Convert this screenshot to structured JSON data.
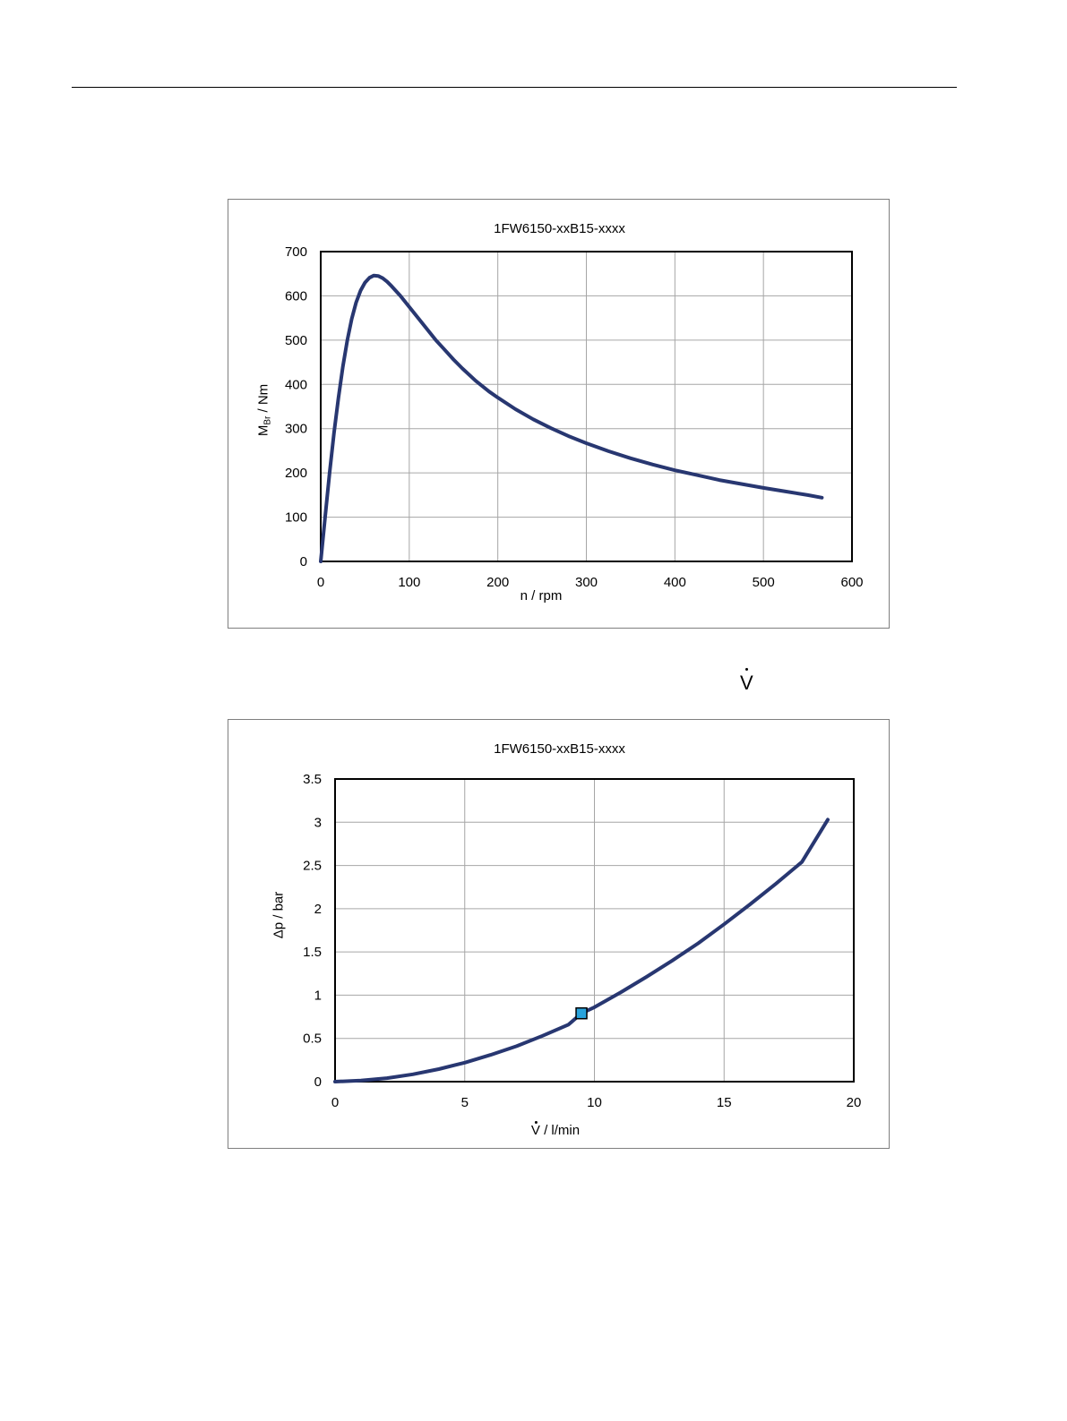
{
  "page": {
    "v_dot_symbol": "V"
  },
  "chart_data": [
    {
      "type": "line",
      "title": "1FW6150-xxB15-xxxx",
      "xlabel": "n / rpm",
      "ylabel_main": "M",
      "ylabel_sub": "Br",
      "ylabel_rest": " / Nm",
      "xlim": [
        0,
        600
      ],
      "ylim": [
        0,
        700
      ],
      "xticks": [
        0,
        100,
        200,
        300,
        400,
        500,
        600
      ],
      "yticks": [
        0,
        100,
        200,
        300,
        400,
        500,
        600,
        700
      ],
      "grid": true,
      "line_color": "#283771",
      "series": [
        {
          "x": [
            0,
            5,
            10,
            15,
            20,
            25,
            30,
            35,
            40,
            45,
            50,
            55,
            60,
            65,
            70,
            75,
            80,
            90,
            100,
            110,
            120,
            130,
            140,
            150,
            160,
            175,
            190,
            200,
            220,
            240,
            260,
            280,
            300,
            325,
            350,
            375,
            400,
            425,
            450,
            475,
            500,
            525,
            550,
            566
          ],
          "y": [
            0,
            100,
            200,
            290,
            370,
            440,
            500,
            548,
            585,
            612,
            630,
            641,
            646,
            645,
            640,
            632,
            622,
            600,
            575,
            550,
            525,
            500,
            478,
            456,
            436,
            408,
            384,
            370,
            344,
            321,
            301,
            283,
            267,
            249,
            233,
            219,
            206,
            195,
            184,
            175,
            166,
            158,
            150,
            144
          ]
        }
      ]
    },
    {
      "type": "line",
      "title": "1FW6150-xxB15-xxxx",
      "xlabel_symbol": "V",
      "xlabel_rest": " / l/min",
      "ylabel": "Δp / bar",
      "xlim": [
        0,
        20
      ],
      "ylim": [
        0,
        3.5
      ],
      "xticks": [
        0,
        5,
        10,
        15,
        20
      ],
      "yticks": [
        0,
        0.5,
        1,
        1.5,
        2,
        2.5,
        3,
        3.5
      ],
      "ytick_labels": [
        "0",
        "0.5",
        "1",
        "1.5",
        "2",
        "2.5",
        "3",
        "3.5"
      ],
      "grid": true,
      "line_color": "#283771",
      "marker_color": "#29a3dc",
      "series": [
        {
          "x": [
            0,
            1,
            2,
            3,
            4,
            5,
            6,
            7,
            8,
            9,
            9.5,
            10,
            11,
            12,
            13,
            14,
            15,
            16,
            17,
            18,
            19
          ],
          "y": [
            0,
            0.012,
            0.04,
            0.085,
            0.145,
            0.22,
            0.31,
            0.41,
            0.53,
            0.66,
            0.79,
            0.86,
            1.03,
            1.21,
            1.4,
            1.6,
            1.82,
            2.05,
            2.29,
            2.54,
            3.03
          ]
        }
      ],
      "markers": [
        {
          "x": 9.5,
          "y": 0.79
        }
      ]
    }
  ]
}
